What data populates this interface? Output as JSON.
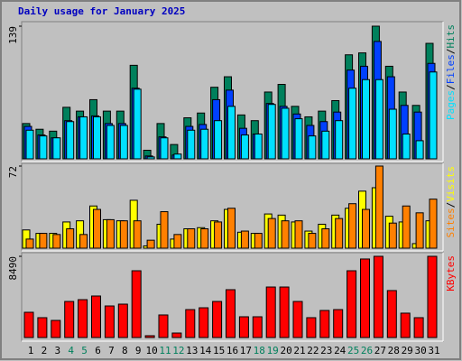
{
  "chart_data": [
    {
      "type": "bar",
      "title": "Daily usage for January 2025",
      "ylim": [
        0,
        139
      ],
      "yticks": [
        139
      ],
      "legend_separator": "/",
      "series": [
        {
          "name": "Hits",
          "color": "#00805c",
          "values": [
            37,
            31,
            29,
            54,
            50,
            62,
            50,
            50,
            98,
            9,
            37,
            15,
            43,
            48,
            75,
            86,
            46,
            40,
            70,
            78,
            55,
            44,
            50,
            61,
            109,
            111,
            139,
            97,
            70,
            56,
            121
          ]
        },
        {
          "name": "Files",
          "color": "#0040ff",
          "values": [
            34,
            25,
            22,
            40,
            44,
            45,
            37,
            37,
            74,
            3,
            23,
            4,
            34,
            36,
            62,
            72,
            32,
            26,
            58,
            55,
            47,
            35,
            39,
            49,
            93,
            97,
            123,
            86,
            56,
            49,
            100
          ]
        },
        {
          "name": "Pages",
          "color": "#00e0ff",
          "values": [
            30,
            24,
            22,
            39,
            44,
            44,
            35,
            35,
            73,
            2,
            22,
            5,
            30,
            31,
            40,
            55,
            25,
            26,
            57,
            53,
            42,
            24,
            29,
            40,
            74,
            83,
            83,
            52,
            26,
            19,
            91
          ]
        }
      ]
    },
    {
      "type": "bar",
      "ylim": [
        0,
        72
      ],
      "yticks": [
        72
      ],
      "legend_separator": "/",
      "series": [
        {
          "name": "Visits",
          "color": "#ffff00",
          "values": [
            16,
            13,
            13,
            23,
            24,
            37,
            25,
            24,
            42,
            2,
            21,
            8,
            17,
            18,
            24,
            34,
            14,
            13,
            30,
            29,
            23,
            15,
            21,
            29,
            35,
            50,
            53,
            28,
            23,
            4,
            24
          ]
        },
        {
          "name": "Sites",
          "color": "#ff8000",
          "values": [
            8,
            13,
            12,
            17,
            12,
            34,
            25,
            24,
            24,
            7,
            32,
            12,
            17,
            17,
            23,
            35,
            15,
            13,
            26,
            24,
            24,
            13,
            17,
            26,
            39,
            34,
            72,
            22,
            37,
            31,
            43
          ]
        }
      ]
    },
    {
      "type": "bar",
      "ylim": [
        0,
        8490
      ],
      "yticks": [
        8490
      ],
      "series": [
        {
          "name": "KBytes",
          "color": "#ff0000",
          "values": [
            2640,
            2075,
            1790,
            3770,
            3960,
            4340,
            3300,
            3490,
            6980,
            190,
            2360,
            470,
            2920,
            3110,
            3770,
            5000,
            2170,
            2170,
            5280,
            5280,
            3770,
            2075,
            2830,
            2920,
            6980,
            8210,
            8490,
            4910,
            2550,
            2075,
            8490
          ]
        }
      ],
      "categories": [
        "1",
        "2",
        "3",
        "4",
        "5",
        "6",
        "7",
        "8",
        "9",
        "10",
        "11",
        "12",
        "13",
        "14",
        "15",
        "16",
        "17",
        "18",
        "19",
        "20",
        "21",
        "22",
        "23",
        "24",
        "25",
        "26",
        "27",
        "28",
        "29",
        "30",
        "31"
      ],
      "category_colors": [
        "#000000",
        "#000000",
        "#000000",
        "#00805c",
        "#00805c",
        "#000000",
        "#000000",
        "#000000",
        "#000000",
        "#000000",
        "#00805c",
        "#00805c",
        "#000000",
        "#000000",
        "#000000",
        "#000000",
        "#000000",
        "#00805c",
        "#00805c",
        "#000000",
        "#000000",
        "#000000",
        "#000000",
        "#000000",
        "#00805c",
        "#00805c",
        "#000000",
        "#000000",
        "#000000",
        "#000000",
        "#000000"
      ]
    }
  ]
}
